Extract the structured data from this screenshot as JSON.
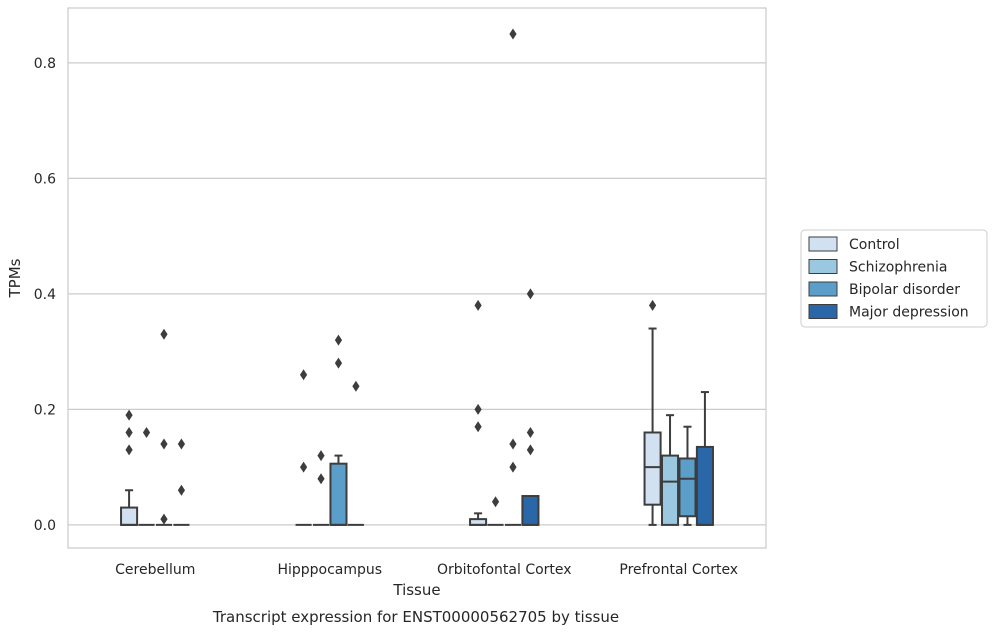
{
  "chart_data": {
    "type": "box",
    "xlabel": "Tissue",
    "ylabel": "TPMs",
    "caption": "Transcript expression for ENST00000562705 by tissue",
    "ylim": [
      -0.04,
      0.895
    ],
    "yticks": [
      0.0,
      0.2,
      0.4,
      0.6,
      0.8
    ],
    "ytick_labels": [
      "0.0",
      "0.2",
      "0.4",
      "0.6",
      "0.8"
    ],
    "grid": "horizontal",
    "legend_position": "right",
    "categories": [
      "Cerebellum",
      "Hipppocampus",
      "Orbitofontal Cortex",
      "Prefrontal Cortex"
    ],
    "series": [
      {
        "name": "Control",
        "color": "#d1e1f1",
        "boxes": [
          {
            "whislo": 0.0,
            "q1": 0.0,
            "med": 0.0,
            "q3": 0.03,
            "whishi": 0.06,
            "fliers": [
              0.13,
              0.16,
              0.19
            ]
          },
          {
            "whislo": 0.0,
            "q1": 0.0,
            "med": 0.0,
            "q3": 0.0,
            "whishi": 0.0,
            "fliers": [
              0.1,
              0.26
            ]
          },
          {
            "whislo": 0.0,
            "q1": 0.0,
            "med": 0.0,
            "q3": 0.01,
            "whishi": 0.02,
            "fliers": [
              0.17,
              0.2,
              0.38
            ]
          },
          {
            "whislo": 0.0,
            "q1": 0.035,
            "med": 0.1,
            "q3": 0.16,
            "whishi": 0.34,
            "fliers": [
              0.38
            ]
          }
        ]
      },
      {
        "name": "Schizophrenia",
        "color": "#9ac8e0",
        "boxes": [
          {
            "whislo": 0.0,
            "q1": 0.0,
            "med": 0.0,
            "q3": 0.0,
            "whishi": 0.0,
            "fliers": [
              0.16
            ]
          },
          {
            "whislo": 0.0,
            "q1": 0.0,
            "med": 0.0,
            "q3": 0.0,
            "whishi": 0.0,
            "fliers": [
              0.08,
              0.12
            ]
          },
          {
            "whislo": 0.0,
            "q1": 0.0,
            "med": 0.0,
            "q3": 0.0,
            "whishi": 0.0,
            "fliers": [
              0.04
            ]
          },
          {
            "whislo": 0.0,
            "q1": 0.0,
            "med": 0.075,
            "q3": 0.12,
            "whishi": 0.19,
            "fliers": []
          }
        ]
      },
      {
        "name": "Bipolar disorder",
        "color": "#5a9ec9",
        "boxes": [
          {
            "whislo": 0.0,
            "q1": 0.0,
            "med": 0.0,
            "q3": 0.0,
            "whishi": 0.0,
            "fliers": [
              0.01,
              0.14,
              0.33
            ]
          },
          {
            "whislo": 0.0,
            "q1": 0.0,
            "med": 0.0,
            "q3": 0.106,
            "whishi": 0.12,
            "fliers": [
              0.28,
              0.32
            ]
          },
          {
            "whislo": 0.0,
            "q1": 0.0,
            "med": 0.0,
            "q3": 0.0,
            "whishi": 0.0,
            "fliers": [
              0.1,
              0.14,
              0.85
            ]
          },
          {
            "whislo": 0.0,
            "q1": 0.015,
            "med": 0.08,
            "q3": 0.115,
            "whishi": 0.17,
            "fliers": []
          }
        ]
      },
      {
        "name": "Major depression",
        "color": "#2967a9",
        "boxes": [
          {
            "whislo": 0.0,
            "q1": 0.0,
            "med": 0.0,
            "q3": 0.0,
            "whishi": 0.0,
            "fliers": [
              0.06,
              0.14
            ]
          },
          {
            "whislo": 0.0,
            "q1": 0.0,
            "med": 0.0,
            "q3": 0.0,
            "whishi": 0.0,
            "fliers": [
              0.24
            ]
          },
          {
            "whislo": 0.0,
            "q1": 0.0,
            "med": 0.0,
            "q3": 0.05,
            "whishi": 0.05,
            "fliers": [
              0.13,
              0.16,
              0.4
            ]
          },
          {
            "whislo": 0.0,
            "q1": 0.0,
            "med": 0.0,
            "q3": 0.135,
            "whishi": 0.23,
            "fliers": []
          }
        ]
      }
    ]
  }
}
